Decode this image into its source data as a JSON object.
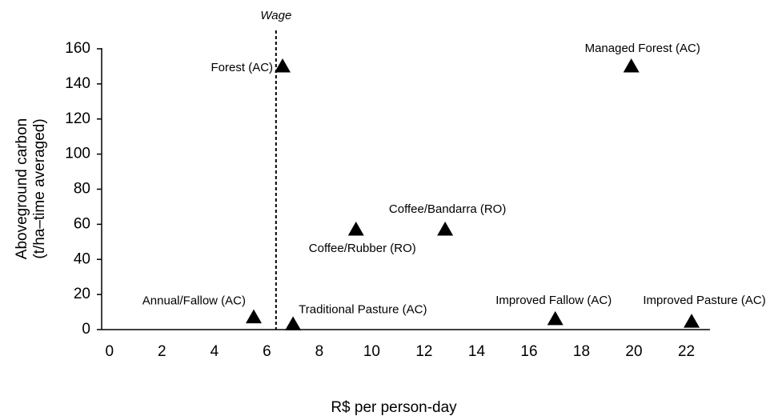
{
  "chart_data": {
    "type": "scatter",
    "xlabel": "R$ per person-day",
    "ylabel": [
      "Aboveground carbon",
      "(t/ha–time averaged)"
    ],
    "xlim": [
      -0.3,
      22.9
    ],
    "ylim": [
      0,
      160
    ],
    "xticks": [
      0,
      2,
      4,
      6,
      8,
      10,
      12,
      14,
      16,
      18,
      20,
      22
    ],
    "yticks": [
      0,
      20,
      40,
      60,
      80,
      100,
      120,
      140,
      160
    ],
    "marker": "triangle",
    "color": "#000000",
    "points": {
      "labels": [
        "Forest (AC)",
        "Managed Forest (AC)",
        "Coffee/Rubber (RO)",
        "Coffee/Bandarra (RO)",
        "Annual/Fallow (AC)",
        "Traditional Pasture (AC)",
        "Improved Fallow (AC)",
        "Improved Pasture (AC)"
      ],
      "x": [
        6.6,
        19.9,
        9.4,
        12.8,
        5.5,
        7.0,
        17.0,
        22.2
      ],
      "y": [
        150,
        150,
        57,
        57,
        7,
        3,
        6,
        4.5
      ]
    },
    "vline": {
      "x": 6.35,
      "label": "Wage",
      "style": "dotted"
    }
  }
}
